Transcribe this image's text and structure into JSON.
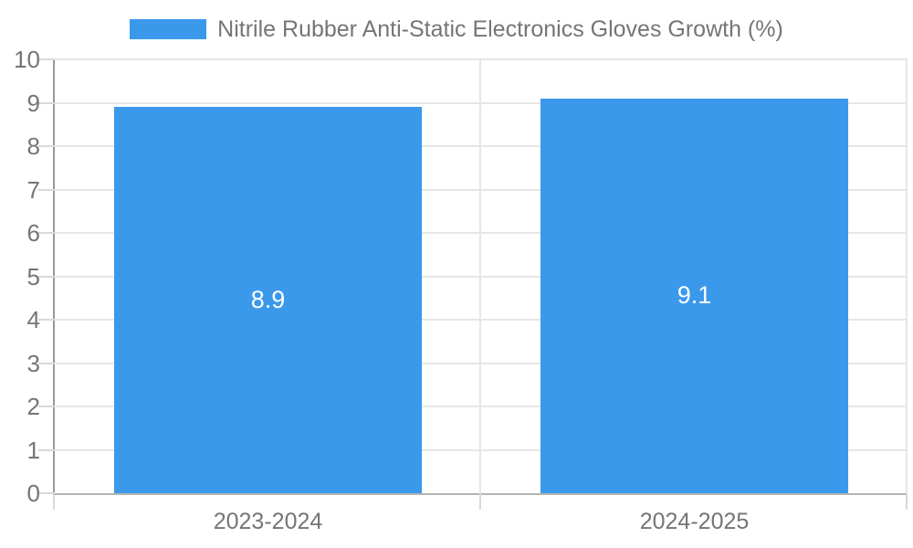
{
  "chart_data": {
    "type": "bar",
    "title": "",
    "legend_label": "Nitrile Rubber Anti-Static Electronics Gloves Growth (%)",
    "legend_position": "top",
    "categories": [
      "2023-2024",
      "2024-2025"
    ],
    "series": [
      {
        "name": "Nitrile Rubber Anti-Static Electronics Gloves Growth (%)",
        "values": [
          8.9,
          9.1
        ]
      }
    ],
    "value_labels": [
      "8.9",
      "9.1"
    ],
    "xlabel": "",
    "ylabel": "",
    "ylim": [
      0,
      10
    ],
    "ytick_step": 1,
    "ytick_labels": [
      "0",
      "1",
      "2",
      "3",
      "4",
      "5",
      "6",
      "7",
      "8",
      "9",
      "10"
    ],
    "grid": true,
    "bar_fraction": 0.72,
    "colors": {
      "bar": "#3b99ec",
      "grid": "#e6e6e6",
      "tick": "#d9d9d9",
      "y_axis": "#999999",
      "x_axis": "#b3b3b3",
      "axis_text": "#757575",
      "value_text": "#ffffff",
      "background": "#ffffff"
    }
  }
}
